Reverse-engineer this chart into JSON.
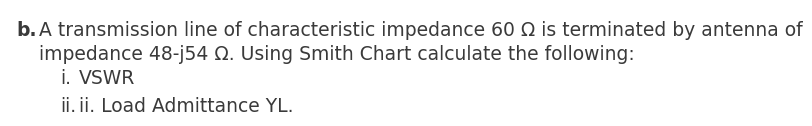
{
  "label_b": "b.",
  "line1": "A transmission line of characteristic impedance 60 Ω is terminated by antenna of",
  "line2": "impedance 48-j54 Ω. Using Smith Chart calculate the following:",
  "item_i_label": "i.",
  "item_i_text": "VSWR",
  "item_ii_label": "ii.",
  "item_ii_text": "ii. Load Admittance YL.",
  "font_family": "sans-serif",
  "font_size": 13.5,
  "text_color": "#3a3a3a",
  "background_color": "#ffffff",
  "bold_b": true
}
